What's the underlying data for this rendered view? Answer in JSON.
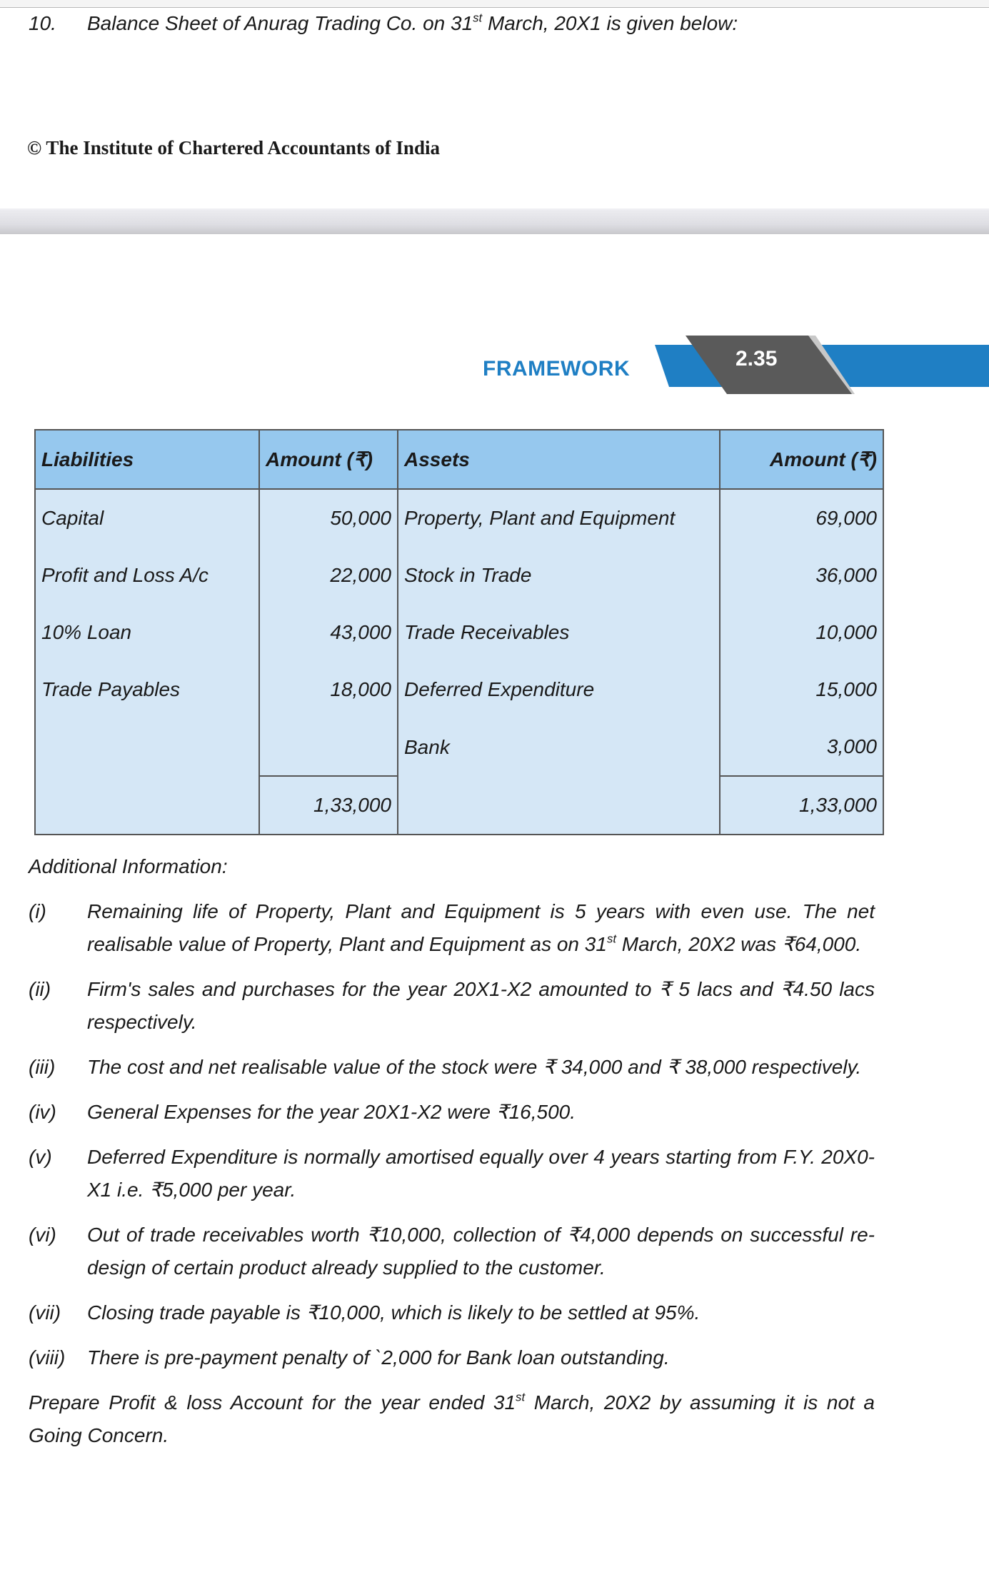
{
  "question": {
    "number": "10.",
    "title_before": "Balance Sheet of Anurag Trading Co. on 31",
    "title_sup": "st",
    "title_after": " March, 20X1 is given below:"
  },
  "copyright": "© The Institute of Chartered Accountants of India",
  "header_band": {
    "label": "FRAMEWORK",
    "page": "2.35",
    "accent_color": "#1f7fc4",
    "dark_color": "#5a5a5a"
  },
  "balance_sheet": {
    "headers": [
      "Liabilities",
      "Amount (₹)",
      "Assets",
      "Amount (₹)"
    ],
    "rows": [
      [
        "Capital",
        "50,000",
        "Property, Plant and Equipment",
        "69,000"
      ],
      [
        "Profit and Loss A/c",
        "22,000",
        "Stock in Trade",
        "36,000"
      ],
      [
        "10% Loan",
        "43,000",
        "Trade Receivables",
        "10,000"
      ],
      [
        "Trade Payables",
        "18,000",
        "Deferred Expenditure",
        "15,000"
      ],
      [
        "",
        "",
        "Bank",
        "3,000"
      ]
    ],
    "totals": [
      "",
      "1,33,000",
      "",
      "1,33,000"
    ],
    "header_color": "#96c8ee",
    "body_color": "#d5e7f6"
  },
  "additional_info": {
    "heading": "Additional Information:",
    "items": [
      {
        "n": "(i)",
        "before": "Remaining life of Property, Plant and Equipment is 5 years with even use. The net realisable value of Property, Plant and Equipment as on 31",
        "sup": "st",
        "after": " March, 20X2 was ₹64,000."
      },
      {
        "n": "(ii)",
        "before": "Firm's sales and purchases for the year 20X1-X2 amounted to ₹ 5 lacs and ₹4.50 lacs respectively.",
        "sup": "",
        "after": ""
      },
      {
        "n": "(iii)",
        "before": "The cost and net realisable value of the stock were ₹ 34,000 and ₹ 38,000 respectively.",
        "sup": "",
        "after": ""
      },
      {
        "n": "(iv)",
        "before": "General Expenses for the year 20X1-X2 were ₹16,500.",
        "sup": "",
        "after": ""
      },
      {
        "n": "(v)",
        "before": "Deferred Expenditure is normally amortised equally over 4 years starting from F.Y. 20X0-X1 i.e. ₹5,000 per year.",
        "sup": "",
        "after": ""
      },
      {
        "n": "(vi)",
        "before": "Out of trade receivables worth ₹10,000, collection of ₹4,000 depends on successful re-design of certain product already supplied to the customer.",
        "sup": "",
        "after": ""
      },
      {
        "n": "(vii)",
        "before": "Closing trade payable is ₹10,000, which is likely to be settled at 95%.",
        "sup": "",
        "after": ""
      },
      {
        "n": "(viii)",
        "before": "There is pre-payment penalty of `2,000 for Bank loan outstanding.",
        "sup": "",
        "after": ""
      }
    ]
  },
  "instruction": {
    "before": "Prepare Profit & loss Account for the year ended 31",
    "sup": "st",
    "after": " March, 20X2 by assuming it is not a Going Concern."
  }
}
